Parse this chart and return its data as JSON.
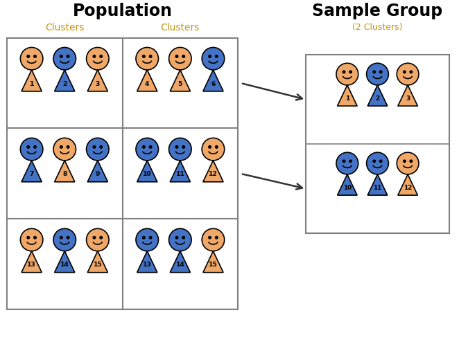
{
  "title_population": "Population",
  "title_sample": "Sample Group",
  "label_clusters": "Clusters",
  "label_2clusters": "(2 Clusters)",
  "orange": "#F0A868",
  "blue": "#4472C4",
  "bg": "#FFFFFF",
  "pop_clusters": [
    {
      "row": 0,
      "col": 0,
      "colors": [
        "orange",
        "blue",
        "orange"
      ],
      "labels": [
        1,
        2,
        3
      ]
    },
    {
      "row": 0,
      "col": 1,
      "colors": [
        "orange",
        "orange",
        "blue"
      ],
      "labels": [
        4,
        5,
        6
      ]
    },
    {
      "row": 1,
      "col": 0,
      "colors": [
        "blue",
        "orange",
        "blue"
      ],
      "labels": [
        7,
        8,
        9
      ]
    },
    {
      "row": 1,
      "col": 1,
      "colors": [
        "blue",
        "blue",
        "orange"
      ],
      "labels": [
        10,
        11,
        12
      ]
    },
    {
      "row": 2,
      "col": 0,
      "colors": [
        "orange",
        "blue",
        "orange"
      ],
      "labels": [
        13,
        14,
        15
      ]
    },
    {
      "row": 2,
      "col": 1,
      "colors": [
        "blue",
        "blue",
        "orange"
      ],
      "labels": [
        13,
        14,
        15
      ]
    }
  ],
  "sample_clusters": [
    {
      "row": 0,
      "colors": [
        "orange",
        "blue",
        "orange"
      ],
      "labels": [
        1,
        2,
        3
      ]
    },
    {
      "row": 1,
      "colors": [
        "blue",
        "blue",
        "orange"
      ],
      "labels": [
        10,
        11,
        12
      ]
    }
  ],
  "grid_color": "#808080",
  "arrow_color": "#333333",
  "title_color": "#000000",
  "cluster_label_color": "#C8960C",
  "fig_width": 6.62,
  "fig_height": 4.87,
  "dpi": 100
}
